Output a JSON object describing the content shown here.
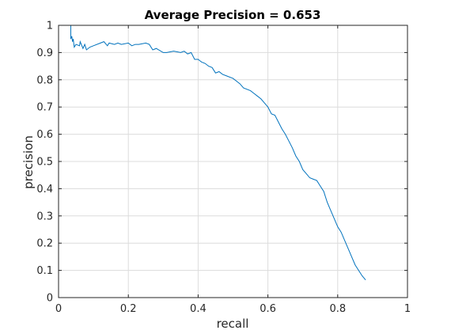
{
  "chart_data": {
    "type": "line",
    "title": "Average Precision = 0.653",
    "xlabel": "recall",
    "ylabel": "precision",
    "xlim": [
      0,
      1
    ],
    "ylim": [
      0,
      1
    ],
    "grid": true,
    "xticks": [
      0,
      0.2,
      0.4,
      0.6,
      0.8,
      1
    ],
    "xtick_labels": [
      "0",
      "0.2",
      "0.4",
      "0.6",
      "0.8",
      "1"
    ],
    "yticks": [
      0,
      0.1,
      0.2,
      0.3,
      0.4,
      0.5,
      0.6,
      0.7,
      0.8,
      0.9,
      1
    ],
    "ytick_labels": [
      "0",
      "0.1",
      "0.2",
      "0.3",
      "0.4",
      "0.5",
      "0.6",
      "0.7",
      "0.8",
      "0.9",
      "1"
    ],
    "colors": {
      "line": "#0072BD",
      "axis": "#262626",
      "grid": "#dcdcdc",
      "background": "#ffffff"
    },
    "series": [
      {
        "x": [
          0,
          0.035,
          0.035,
          0.038,
          0.04,
          0.042,
          0.045,
          0.05,
          0.06,
          0.062,
          0.07,
          0.075,
          0.08,
          0.09,
          0.1,
          0.12,
          0.13,
          0.14,
          0.145,
          0.16,
          0.17,
          0.18,
          0.2,
          0.21,
          0.22,
          0.23,
          0.25,
          0.26,
          0.27,
          0.28,
          0.3,
          0.31,
          0.33,
          0.35,
          0.36,
          0.37,
          0.38,
          0.39,
          0.4,
          0.41,
          0.42,
          0.43,
          0.44,
          0.45,
          0.46,
          0.47,
          0.48,
          0.5,
          0.51,
          0.52,
          0.53,
          0.55,
          0.56,
          0.57,
          0.58,
          0.59,
          0.6,
          0.61,
          0.62,
          0.63,
          0.64,
          0.65,
          0.66,
          0.67,
          0.68,
          0.69,
          0.7,
          0.71,
          0.72,
          0.73,
          0.74,
          0.75,
          0.76,
          0.77,
          0.78,
          0.79,
          0.8,
          0.81,
          0.82,
          0.83,
          0.84,
          0.85,
          0.86,
          0.87,
          0.88
        ],
        "y": [
          1.0,
          1.0,
          0.95,
          0.96,
          0.94,
          0.95,
          0.92,
          0.93,
          0.925,
          0.94,
          0.915,
          0.93,
          0.91,
          0.92,
          0.925,
          0.935,
          0.94,
          0.925,
          0.935,
          0.93,
          0.935,
          0.93,
          0.935,
          0.925,
          0.93,
          0.93,
          0.935,
          0.93,
          0.91,
          0.915,
          0.9,
          0.9,
          0.905,
          0.9,
          0.905,
          0.895,
          0.9,
          0.875,
          0.875,
          0.865,
          0.86,
          0.85,
          0.845,
          0.825,
          0.83,
          0.82,
          0.815,
          0.805,
          0.795,
          0.785,
          0.77,
          0.76,
          0.75,
          0.74,
          0.73,
          0.715,
          0.7,
          0.675,
          0.67,
          0.645,
          0.62,
          0.6,
          0.575,
          0.55,
          0.52,
          0.5,
          0.47,
          0.455,
          0.44,
          0.435,
          0.43,
          0.41,
          0.39,
          0.35,
          0.32,
          0.29,
          0.26,
          0.24,
          0.21,
          0.18,
          0.15,
          0.12,
          0.1,
          0.08,
          0.065
        ]
      }
    ]
  }
}
